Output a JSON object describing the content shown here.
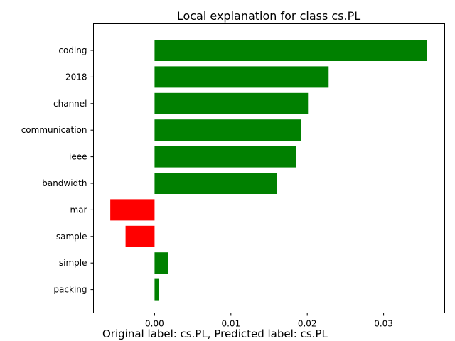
{
  "chart_data": {
    "type": "bar",
    "orientation": "horizontal",
    "title": "Local explanation for class cs.PL",
    "caption": "Original label: cs.PL, Predicted label: cs.PL",
    "categories": [
      "coding",
      "2018",
      "channel",
      "communication",
      "ieee",
      "bandwidth",
      "mar",
      "sample",
      "simple",
      "packing"
    ],
    "values": [
      0.0357,
      0.0228,
      0.0201,
      0.0192,
      0.0185,
      0.016,
      -0.0058,
      -0.0038,
      0.0018,
      0.0006
    ],
    "xlim": [
      -0.008,
      0.038
    ],
    "xticks": [
      0.0,
      0.01,
      0.02,
      0.03
    ],
    "xtick_labels": [
      "0.00",
      "0.01",
      "0.02",
      "0.03"
    ],
    "grid": false,
    "colors": {
      "positive": "#008000",
      "negative": "#ff0000"
    }
  }
}
